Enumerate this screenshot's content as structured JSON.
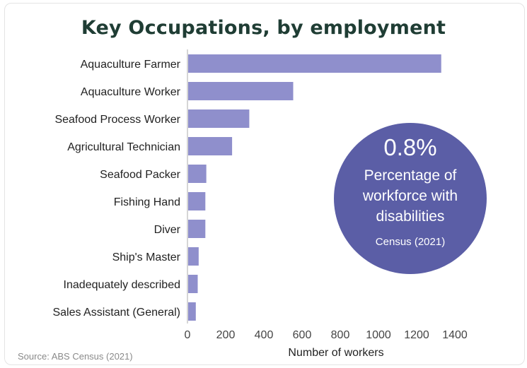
{
  "title": "Key Occupations, by employment",
  "source": "Source: ABS Census (2021)",
  "highlight": {
    "value": "0.8%",
    "label": "Percentage of workforce with disabilities",
    "note": "Census (2021)"
  },
  "colors": {
    "bar": "#8f8fcc",
    "circle": "#5b5ea6",
    "title": "#1f3d34"
  },
  "chart_data": {
    "type": "bar",
    "orientation": "horizontal",
    "categories": [
      "Aquaculture Farmer",
      "Aquaculture Worker",
      "Seafood Process Worker",
      "Agricultural Technician",
      "Seafood Packer",
      "Fishing Hand",
      "Diver",
      "Ship's Master",
      "Inadequately described",
      "Sales Assistant (General)"
    ],
    "values": [
      1325,
      550,
      320,
      230,
      95,
      90,
      90,
      55,
      50,
      40
    ],
    "xlabel": "Number of workers",
    "ylabel": "",
    "xlim": [
      0,
      1400
    ],
    "ticks": [
      0,
      200,
      400,
      600,
      800,
      1000,
      1200,
      1400
    ],
    "grid": false
  }
}
